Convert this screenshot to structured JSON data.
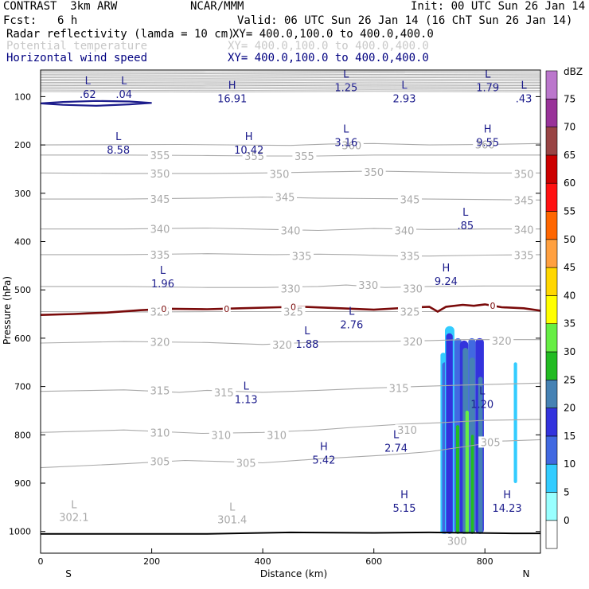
{
  "header": {
    "model": "CONTRAST  3km ARW",
    "org": "NCAR/MMM",
    "init": "Init: 00 UTC Sun 26 Jan 14",
    "fcst_label": "Fcst:",
    "fcst_value": "6 h",
    "valid": "Valid: 06 UTC Sun 26 Jan 14 (16 ChT Sun 26 Jan 14)",
    "fields": [
      {
        "name": "Radar reflectivity (lamda = 10 cm)",
        "xy": "XY= 400.0,100.0 to 400.0,400.0",
        "color": "#000000"
      },
      {
        "name": "Potential temperature",
        "xy": "XY= 400.0,100.0 to 400.0,400.0",
        "color": "#c8c8c8"
      },
      {
        "name": "Horizontal wind speed",
        "xy": "XY= 400.0,100.0 to 400.0,400.0",
        "color": "#000080"
      }
    ]
  },
  "colors": {
    "theta": "#a9a9a9",
    "wind": "#1c1c8c",
    "freezing": "#7a0a0a",
    "ground": "#000000"
  },
  "chart_data": {
    "type": "cross-section",
    "xlabel": "Distance (km)",
    "ylabel": "Pressure (hPa)",
    "xlim": [
      0,
      900
    ],
    "ylim": [
      1045,
      45
    ],
    "x_ticks": [
      0,
      200,
      400,
      600,
      800
    ],
    "y_ticks": [
      100,
      200,
      300,
      400,
      500,
      600,
      700,
      800,
      900,
      1000
    ],
    "x_end_labels": {
      "left": "S",
      "right": "N"
    },
    "theta_contours": [
      {
        "level": 305,
        "pts": [
          [
            0,
            868
          ],
          [
            150,
            860
          ],
          [
            260,
            853
          ],
          [
            320,
            855
          ],
          [
            400,
            858
          ],
          [
            500,
            850
          ],
          [
            560,
            846
          ],
          [
            620,
            842
          ],
          [
            700,
            835
          ],
          [
            760,
            825
          ],
          [
            830,
            813
          ],
          [
            900,
            810
          ]
        ],
        "labels": [
          [
            215,
            855
          ],
          [
            370,
            858
          ],
          [
            810,
            815
          ]
        ]
      },
      {
        "level": 310,
        "pts": [
          [
            0,
            795
          ],
          [
            150,
            790
          ],
          [
            290,
            797
          ],
          [
            400,
            795
          ],
          [
            500,
            790
          ],
          [
            580,
            783
          ],
          [
            650,
            778
          ],
          [
            720,
            775
          ],
          [
            800,
            770
          ],
          [
            900,
            768
          ]
        ],
        "labels": [
          [
            215,
            795
          ],
          [
            325,
            800
          ],
          [
            425,
            800
          ],
          [
            660,
            790
          ]
        ]
      },
      {
        "level": 315,
        "pts": [
          [
            0,
            710
          ],
          [
            150,
            707
          ],
          [
            250,
            712
          ],
          [
            300,
            708
          ],
          [
            400,
            712
          ],
          [
            500,
            708
          ],
          [
            600,
            703
          ],
          [
            680,
            700
          ],
          [
            760,
            697
          ],
          [
            900,
            693
          ]
        ],
        "labels": [
          [
            215,
            708
          ],
          [
            330,
            712
          ],
          [
            645,
            703
          ]
        ]
      },
      {
        "level": 320,
        "pts": [
          [
            0,
            610
          ],
          [
            150,
            607
          ],
          [
            300,
            609
          ],
          [
            400,
            613
          ],
          [
            500,
            608
          ],
          [
            600,
            607
          ],
          [
            700,
            605
          ],
          [
            760,
            603
          ],
          [
            900,
            603
          ]
        ],
        "labels": [
          [
            215,
            608
          ],
          [
            435,
            613
          ],
          [
            670,
            607
          ],
          [
            830,
            605
          ]
        ]
      },
      {
        "level": 325,
        "pts": [
          [
            0,
            545
          ],
          [
            150,
            546
          ],
          [
            300,
            545
          ],
          [
            400,
            545
          ],
          [
            500,
            545
          ],
          [
            600,
            545
          ],
          [
            700,
            545
          ],
          [
            800,
            545
          ],
          [
            900,
            545
          ]
        ],
        "labels": [
          [
            215,
            545
          ],
          [
            455,
            545
          ],
          [
            665,
            545
          ]
        ]
      },
      {
        "level": 330,
        "pts": [
          [
            0,
            493
          ],
          [
            150,
            493
          ],
          [
            300,
            495
          ],
          [
            400,
            495
          ],
          [
            500,
            493
          ],
          [
            550,
            490
          ],
          [
            620,
            495
          ],
          [
            700,
            493
          ],
          [
            800,
            492
          ],
          [
            900,
            492
          ]
        ],
        "labels": [
          [
            450,
            497
          ],
          [
            590,
            490
          ],
          [
            670,
            497
          ]
        ]
      },
      {
        "level": 335,
        "pts": [
          [
            0,
            427
          ],
          [
            150,
            427
          ],
          [
            300,
            425
          ],
          [
            420,
            427
          ],
          [
            500,
            426
          ],
          [
            560,
            427
          ],
          [
            650,
            430
          ],
          [
            700,
            430
          ],
          [
            800,
            428
          ],
          [
            900,
            427
          ]
        ],
        "labels": [
          [
            215,
            427
          ],
          [
            470,
            430
          ],
          [
            665,
            430
          ],
          [
            870,
            428
          ]
        ]
      },
      {
        "level": 340,
        "pts": [
          [
            0,
            374
          ],
          [
            150,
            374
          ],
          [
            300,
            372
          ],
          [
            420,
            375
          ],
          [
            500,
            377
          ],
          [
            600,
            373
          ],
          [
            700,
            375
          ],
          [
            800,
            374
          ],
          [
            900,
            374
          ]
        ],
        "labels": [
          [
            215,
            374
          ],
          [
            450,
            377
          ],
          [
            655,
            377
          ],
          [
            870,
            375
          ]
        ]
      },
      {
        "level": 345,
        "pts": [
          [
            0,
            312
          ],
          [
            150,
            312
          ],
          [
            300,
            310
          ],
          [
            400,
            308
          ],
          [
            500,
            310
          ],
          [
            600,
            311
          ],
          [
            700,
            312
          ],
          [
            800,
            313
          ],
          [
            900,
            314
          ]
        ],
        "labels": [
          [
            215,
            312
          ],
          [
            440,
            308
          ],
          [
            665,
            313
          ],
          [
            870,
            314
          ]
        ]
      },
      {
        "level": 350,
        "pts": [
          [
            0,
            258
          ],
          [
            150,
            259
          ],
          [
            300,
            259
          ],
          [
            400,
            258
          ],
          [
            500,
            256
          ],
          [
            600,
            254
          ],
          [
            700,
            256
          ],
          [
            800,
            258
          ],
          [
            900,
            258
          ]
        ],
        "labels": [
          [
            215,
            259
          ],
          [
            430,
            260
          ],
          [
            600,
            256
          ],
          [
            870,
            260
          ]
        ]
      },
      {
        "level": 355,
        "pts": [
          [
            0,
            221
          ],
          [
            150,
            221
          ],
          [
            300,
            222
          ],
          [
            400,
            223
          ],
          [
            500,
            223
          ],
          [
            600,
            221
          ],
          [
            700,
            221
          ],
          [
            800,
            221
          ],
          [
            900,
            221
          ]
        ],
        "labels": [
          [
            215,
            221
          ],
          [
            385,
            223
          ],
          [
            475,
            223
          ]
        ]
      },
      {
        "level": 360,
        "pts": [
          [
            0,
            200
          ],
          [
            250,
            199
          ],
          [
            450,
            201
          ],
          [
            520,
            198
          ],
          [
            600,
            197
          ],
          [
            700,
            200
          ],
          [
            800,
            199
          ],
          [
            900,
            197
          ]
        ],
        "labels": [
          [
            560,
            201
          ],
          [
            800,
            199
          ]
        ]
      }
    ],
    "theta_extremes": [
      {
        "type": "L",
        "value": "302.1",
        "x": 60,
        "p": 955
      },
      {
        "type": "L",
        "value": "301.4",
        "x": 345,
        "p": 960
      },
      {
        "type": "",
        "value": "300",
        "x": 750,
        "p": 1005
      }
    ],
    "wind_extremes": [
      {
        "type": "L",
        "value": ".62",
        "x": 85,
        "p": 78
      },
      {
        "type": "L",
        "value": ".04",
        "x": 150,
        "p": 78
      },
      {
        "type": "H",
        "value": "16.91",
        "x": 345,
        "p": 87
      },
      {
        "type": "L",
        "value": "1.25",
        "x": 550,
        "p": 64
      },
      {
        "type": "L",
        "value": "2.93",
        "x": 655,
        "p": 87
      },
      {
        "type": "L",
        "value": "1.79",
        "x": 805,
        "p": 64
      },
      {
        "type": "L",
        "value": ".43",
        "x": 870,
        "p": 87
      },
      {
        "type": "L",
        "value": "8.58",
        "x": 140,
        "p": 193
      },
      {
        "type": "H",
        "value": "10.42",
        "x": 375,
        "p": 193
      },
      {
        "type": "L",
        "value": "3.16",
        "x": 550,
        "p": 178
      },
      {
        "type": "H",
        "value": "9.55",
        "x": 805,
        "p": 178
      },
      {
        "type": "L",
        "value": ".85",
        "x": 765,
        "p": 350
      },
      {
        "type": "L",
        "value": "1.96",
        "x": 220,
        "p": 470
      },
      {
        "type": "H",
        "value": "9.24",
        "x": 730,
        "p": 465
      },
      {
        "type": "L",
        "value": "2.76",
        "x": 560,
        "p": 555
      },
      {
        "type": "L",
        "value": "1.88",
        "x": 480,
        "p": 595
      },
      {
        "type": "L",
        "value": "1.13",
        "x": 370,
        "p": 710
      },
      {
        "type": "L",
        "value": "1.20",
        "x": 795,
        "p": 720
      },
      {
        "type": "L",
        "value": "2.74",
        "x": 640,
        "p": 810
      },
      {
        "type": "H",
        "value": "5.42",
        "x": 510,
        "p": 835
      },
      {
        "type": "H",
        "value": "5.15",
        "x": 655,
        "p": 935
      },
      {
        "type": "H",
        "value": "14.23",
        "x": 840,
        "p": 935
      }
    ],
    "freezing_level": {
      "label": "0",
      "pts": [
        [
          0,
          552
        ],
        [
          60,
          550
        ],
        [
          120,
          547
        ],
        [
          180,
          542
        ],
        [
          230,
          539
        ],
        [
          300,
          540
        ],
        [
          360,
          538
        ],
        [
          430,
          536
        ],
        [
          470,
          535
        ],
        [
          540,
          538
        ],
        [
          600,
          541
        ],
        [
          660,
          537
        ],
        [
          700,
          535
        ],
        [
          715,
          545
        ],
        [
          730,
          535
        ],
        [
          760,
          531
        ],
        [
          780,
          533
        ],
        [
          800,
          530
        ],
        [
          830,
          536
        ],
        [
          870,
          538
        ],
        [
          900,
          543
        ]
      ],
      "label_x": [
        222,
        335,
        455,
        814
      ]
    },
    "reflectivity": {
      "units": "dBZ",
      "levels": [
        0,
        5,
        10,
        15,
        20,
        25,
        30,
        35,
        40,
        45,
        50,
        55,
        60,
        65,
        70,
        75
      ],
      "colors": [
        "#ffffff",
        "#99ffff",
        "#33ccff",
        "#4169e1",
        "#3333dd",
        "#4682b4",
        "#22bb22",
        "#66ee44",
        "#ffff00",
        "#ffd700",
        "#ffa040",
        "#ff6600",
        "#ff1111",
        "#cc0000",
        "#994444",
        "#993399",
        "#bb77cc"
      ],
      "cells": [
        {
          "x0": 720,
          "x1": 730,
          "p0": 630,
          "p1": 1005,
          "dbz": 7
        },
        {
          "x0": 723,
          "x1": 733,
          "p0": 650,
          "p1": 1005,
          "dbz": 12
        },
        {
          "x0": 728,
          "x1": 745,
          "p0": 575,
          "p1": 1005,
          "dbz": 7
        },
        {
          "x0": 730,
          "x1": 742,
          "p0": 590,
          "p1": 1005,
          "dbz": 17
        },
        {
          "x0": 745,
          "x1": 758,
          "p0": 600,
          "p1": 1005,
          "dbz": 12
        },
        {
          "x0": 755,
          "x1": 770,
          "p0": 605,
          "p1": 1005,
          "dbz": 17
        },
        {
          "x0": 760,
          "x1": 770,
          "p0": 620,
          "p1": 1005,
          "dbz": 22
        },
        {
          "x0": 770,
          "x1": 783,
          "p0": 600,
          "p1": 1005,
          "dbz": 12
        },
        {
          "x0": 772,
          "x1": 782,
          "p0": 640,
          "p1": 1005,
          "dbz": 22
        },
        {
          "x0": 783,
          "x1": 798,
          "p0": 600,
          "p1": 1005,
          "dbz": 17
        },
        {
          "x0": 788,
          "x1": 796,
          "p0": 680,
          "p1": 1005,
          "dbz": 22
        },
        {
          "x0": 748,
          "x1": 754,
          "p0": 780,
          "p1": 1005,
          "dbz": 27
        },
        {
          "x0": 765,
          "x1": 771,
          "p0": 750,
          "p1": 1005,
          "dbz": 32
        },
        {
          "x0": 775,
          "x1": 780,
          "p0": 800,
          "p1": 1005,
          "dbz": 27
        },
        {
          "x0": 852,
          "x1": 858,
          "p0": 650,
          "p1": 900,
          "dbz": 7
        }
      ]
    }
  }
}
